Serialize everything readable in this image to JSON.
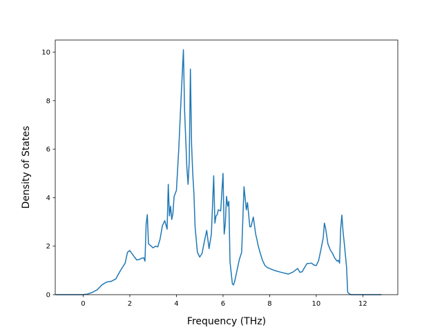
{
  "chart_data": {
    "type": "line",
    "title": "",
    "xlabel": "Frequency (THz)",
    "ylabel": "Density of States",
    "xlim": [
      -1.2,
      13.5
    ],
    "ylim": [
      0,
      10.5
    ],
    "xticks": [
      0,
      2,
      4,
      6,
      8,
      10,
      12
    ],
    "yticks": [
      0,
      2,
      4,
      6,
      8,
      10
    ],
    "xtick_labels": [
      "0",
      "2",
      "4",
      "6",
      "8",
      "10",
      "12"
    ],
    "ytick_labels": [
      "0",
      "2",
      "4",
      "6",
      "8",
      "10"
    ],
    "grid": false,
    "legend": "none",
    "series": [
      {
        "color": "#1f77b4",
        "x": [
          -1.18,
          0.0,
          0.2,
          0.4,
          0.6,
          0.8,
          1.0,
          1.2,
          1.4,
          1.6,
          1.8,
          1.9,
          2.0,
          2.2,
          2.3,
          2.4,
          2.5,
          2.6,
          2.65,
          2.7,
          2.75,
          2.8,
          3.0,
          3.1,
          3.2,
          3.3,
          3.4,
          3.5,
          3.6,
          3.65,
          3.7,
          3.75,
          3.8,
          3.85,
          3.9,
          4.0,
          4.1,
          4.2,
          4.3,
          4.35,
          4.45,
          4.5,
          4.55,
          4.6,
          4.65,
          4.7,
          4.75,
          4.8,
          4.9,
          5.0,
          5.1,
          5.2,
          5.3,
          5.4,
          5.5,
          5.6,
          5.65,
          5.7,
          5.75,
          5.8,
          5.9,
          6.0,
          6.05,
          6.1,
          6.15,
          6.2,
          6.25,
          6.3,
          6.35,
          6.4,
          6.45,
          6.5,
          6.6,
          6.7,
          6.8,
          6.9,
          7.0,
          7.05,
          7.1,
          7.15,
          7.2,
          7.3,
          7.4,
          7.45,
          7.5,
          7.6,
          7.7,
          7.8,
          7.9,
          8.0,
          8.2,
          8.5,
          8.8,
          9.0,
          9.2,
          9.3,
          9.4,
          9.5,
          9.6,
          9.8,
          9.9,
          10.0,
          10.1,
          10.2,
          10.3,
          10.35,
          10.4,
          10.5,
          10.6,
          10.7,
          10.8,
          10.9,
          10.95,
          11.0,
          11.05,
          11.1,
          11.15,
          11.2,
          11.3,
          11.35,
          11.4,
          11.45,
          11.5,
          11.6,
          11.7,
          12.0,
          12.8
        ],
        "y": [
          0,
          0,
          0.03,
          0.1,
          0.2,
          0.4,
          0.52,
          0.55,
          0.65,
          1.0,
          1.3,
          1.75,
          1.82,
          1.55,
          1.43,
          1.45,
          1.5,
          1.52,
          1.38,
          2.9,
          3.3,
          2.1,
          1.93,
          2.0,
          1.97,
          2.3,
          2.85,
          3.05,
          2.7,
          4.55,
          3.25,
          3.65,
          3.1,
          3.35,
          4.05,
          4.3,
          6.0,
          8.1,
          10.1,
          7.6,
          5.2,
          4.55,
          5.5,
          9.3,
          6.2,
          5.0,
          4.2,
          2.8,
          1.75,
          1.55,
          1.7,
          2.2,
          2.65,
          1.9,
          2.5,
          4.9,
          2.95,
          3.25,
          3.3,
          3.5,
          3.45,
          5.0,
          2.5,
          2.95,
          4.05,
          3.65,
          3.85,
          1.35,
          0.9,
          0.45,
          0.4,
          0.55,
          1.0,
          1.45,
          1.75,
          4.45,
          3.5,
          3.8,
          3.3,
          2.8,
          2.8,
          3.2,
          2.5,
          2.3,
          2.05,
          1.7,
          1.4,
          1.2,
          1.12,
          1.08,
          1.0,
          0.92,
          0.85,
          0.93,
          1.08,
          0.92,
          0.95,
          1.12,
          1.28,
          1.3,
          1.22,
          1.2,
          1.4,
          1.85,
          2.35,
          2.95,
          2.75,
          2.1,
          1.85,
          1.7,
          1.5,
          1.38,
          1.42,
          1.3,
          2.75,
          3.28,
          2.6,
          2.15,
          1.15,
          0.1,
          0.05,
          0.02,
          0,
          0,
          0,
          0,
          0
        ]
      }
    ]
  }
}
